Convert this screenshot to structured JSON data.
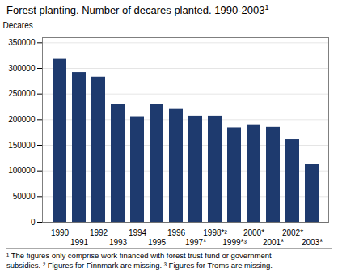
{
  "chart_data": {
    "type": "bar",
    "title": "Forest planting. Number of decares planted. 1990-2003",
    "title_superscript": "1",
    "ylabel": "Decares",
    "categories": [
      "1990",
      "1991",
      "1992",
      "1993",
      "1994",
      "1995",
      "1996",
      "1997*",
      "1998*²",
      "1999*³",
      "2000*",
      "2001*",
      "2002*",
      "2003*"
    ],
    "values": [
      318000,
      292000,
      283000,
      229000,
      206000,
      230000,
      220000,
      207000,
      207000,
      184000,
      190000,
      185000,
      161000,
      113000
    ],
    "color": "#1e3a6e",
    "ylim": [
      0,
      360000
    ],
    "yticks": [
      0,
      50000,
      100000,
      150000,
      200000,
      250000,
      300000,
      350000
    ],
    "grid": true,
    "footnotes": [
      "¹ The figures only comprise work financed with forest trust fund or government",
      "subsidies. ² Figures for Finnmark are missing. ³ Figures for Troms are missing."
    ]
  }
}
